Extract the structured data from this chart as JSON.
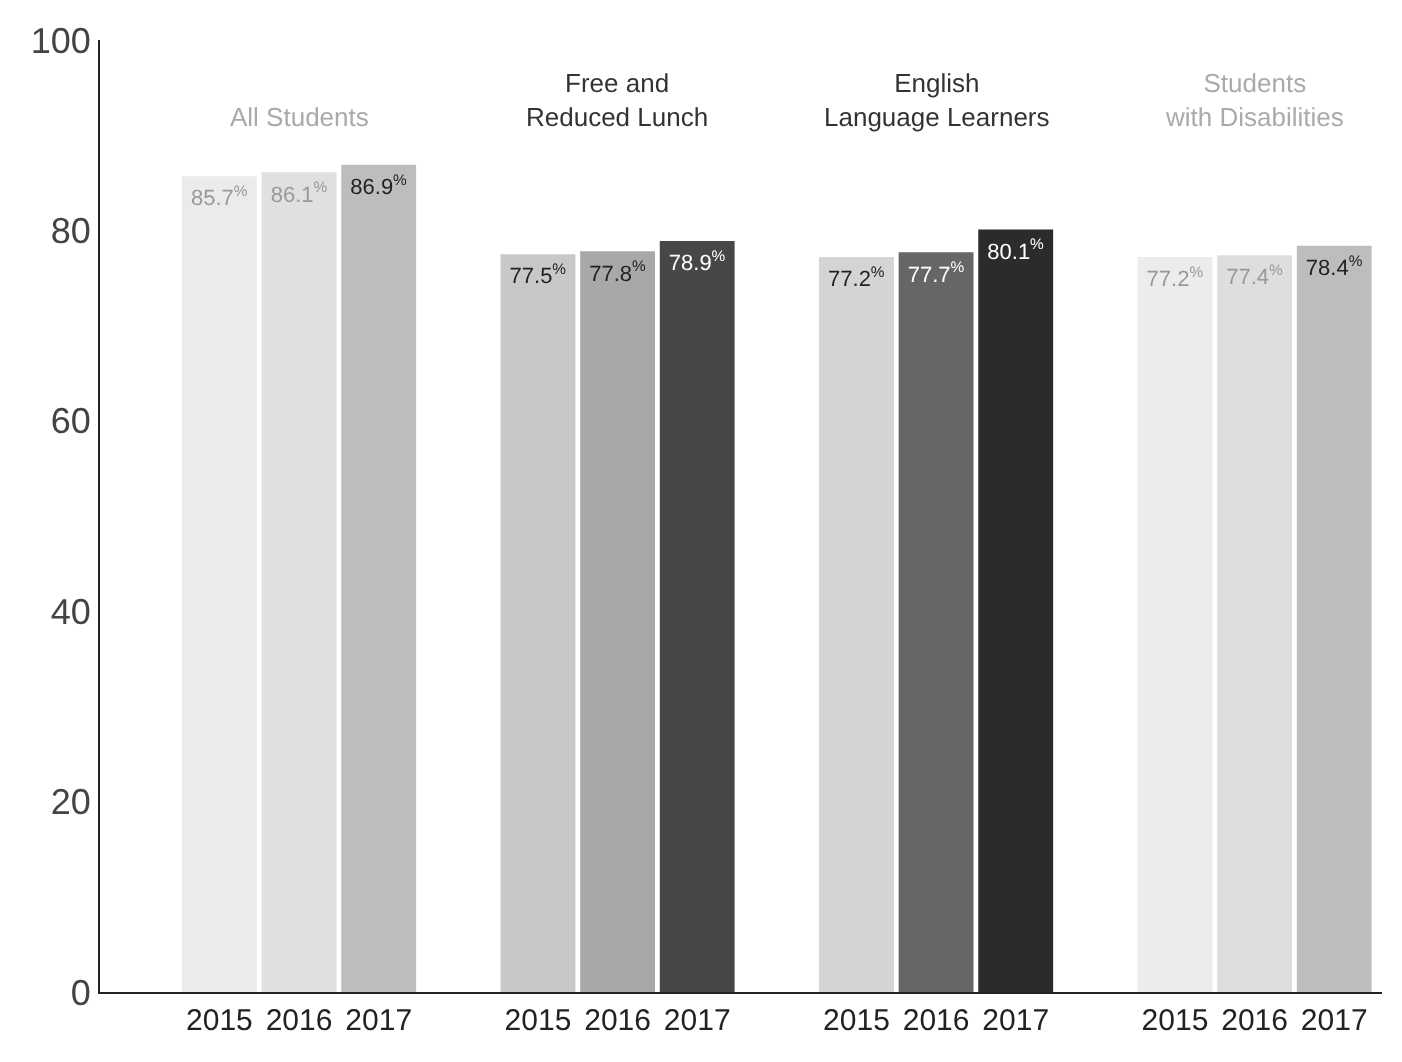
{
  "chart_data": {
    "type": "bar",
    "categories": [
      "2015",
      "2016",
      "2017",
      "2015",
      "2016",
      "2017",
      "2015",
      "2016",
      "2017",
      "2015",
      "2016",
      "2017"
    ],
    "values": [
      85.7,
      86.1,
      86.9,
      77.5,
      77.8,
      78.9,
      77.2,
      77.7,
      80.1,
      77.2,
      77.4,
      78.4
    ],
    "colors": [
      "#ebebeb",
      "#e0e0e0",
      "#bdbdbd",
      "#c8c8c8",
      "#a8a8a8",
      "#474747",
      "#d4d4d4",
      "#666666",
      "#2b2b2b",
      "#ececec",
      "#dedede",
      "#bdbdbd"
    ],
    "value_labels": [
      "85.7$^{%}$",
      "86.1$^{%}$",
      "86.9$^{%}$",
      "77.5$^{%}$",
      "77.8$^{%}$",
      "78.9$^{%}$",
      "77.2$^{%}$",
      "77.7$^{%}$",
      "80.1$^{%}$",
      "77.2$^{%}$",
      "77.4$^{%}$",
      "78.4$^{%}$"
    ],
    "annotations": [
      "All Students",
      "Free and\nReduced Lunch",
      "English\nLanguage Learners",
      "Students\nwith Disabilities"
    ],
    "ylim": [
      0,
      100
    ],
    "yticks": [
      0,
      20,
      40,
      60,
      80,
      100
    ]
  }
}
